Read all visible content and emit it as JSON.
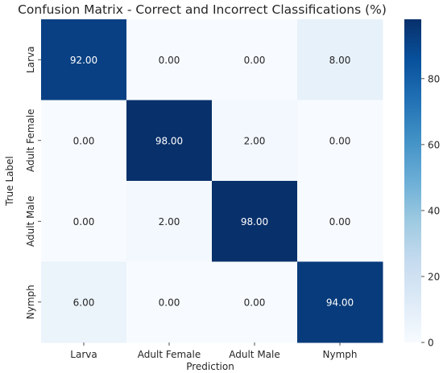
{
  "chart_data": {
    "type": "heatmap",
    "title": "Confusion Matrix - Correct and Incorrect Classifications (%)",
    "xlabel": "Prediction",
    "ylabel": "True Label",
    "x_categories": [
      "Larva",
      "Adult Female",
      "Adult Male",
      "Nymph"
    ],
    "y_categories": [
      "Larva",
      "Adult Female",
      "Adult Male",
      "Nymph"
    ],
    "values": [
      [
        92.0,
        0.0,
        0.0,
        8.0
      ],
      [
        0.0,
        98.0,
        2.0,
        0.0
      ],
      [
        0.0,
        2.0,
        98.0,
        0.0
      ],
      [
        6.0,
        0.0,
        0.0,
        94.0
      ]
    ],
    "cell_labels": [
      [
        "92.00",
        "0.00",
        "0.00",
        "8.00"
      ],
      [
        "0.00",
        "98.00",
        "2.00",
        "0.00"
      ],
      [
        "0.00",
        "2.00",
        "98.00",
        "0.00"
      ],
      [
        "6.00",
        "0.00",
        "0.00",
        "94.00"
      ]
    ],
    "colorbar": {
      "colormap": "Blues",
      "range": [
        0,
        98
      ],
      "ticks": [
        0,
        20,
        40,
        60,
        80
      ],
      "tick_labels": [
        "0",
        "20",
        "40",
        "60",
        "80"
      ]
    },
    "colors": {
      "low": "#f7fbff",
      "high": "#08306b",
      "dark_text": "#262626",
      "light_text": "#ffffff"
    }
  }
}
